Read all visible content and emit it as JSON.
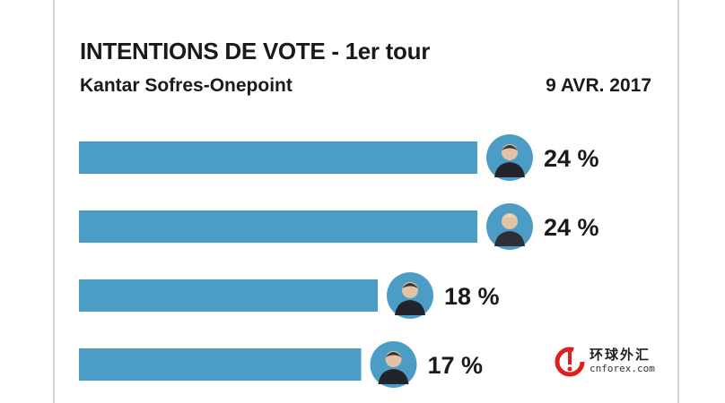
{
  "header": {
    "title": "INTENTIONS DE VOTE - 1er tour",
    "source": "Kantar Sofres-Onepoint",
    "date": "9 AVR. 2017"
  },
  "colors": {
    "bar": "#4c9dc6",
    "avatar_ring": "#4c9dc6",
    "text": "#1a1a1a"
  },
  "logo": {
    "name_cn": "环球外汇",
    "domain": "cnforex.com"
  },
  "chart_data": {
    "type": "bar",
    "orientation": "horizontal",
    "title": "INTENTIONS DE VOTE - 1er tour",
    "subtitle": "Kantar Sofres-Onepoint",
    "categories": [
      "",
      "",
      "",
      ""
    ],
    "values": [
      24,
      24,
      18,
      17
    ],
    "value_labels": [
      "24 %",
      "24 %",
      "18 %",
      "17 %"
    ],
    "unit": "%",
    "grid": false,
    "legend": "none",
    "xlim": [
      0,
      24
    ]
  }
}
